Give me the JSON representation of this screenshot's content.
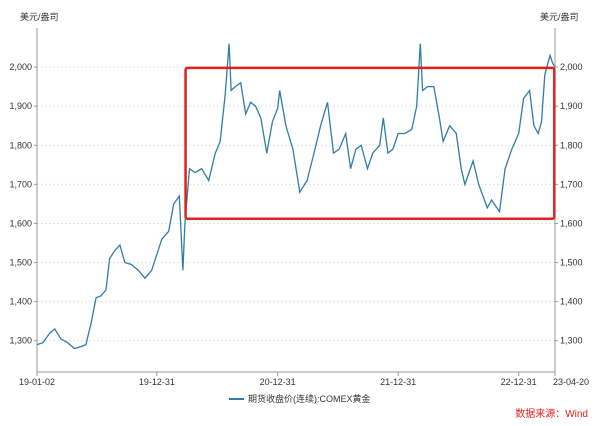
{
  "chart_data": {
    "type": "line",
    "title": "",
    "ylabel_left": "美元/盎司",
    "ylabel_right": "美元/盎司",
    "ylim": [
      1220,
      2100
    ],
    "yticks": [
      1300,
      1400,
      1500,
      1600,
      1700,
      1800,
      1900,
      2000
    ],
    "ytick_labels": [
      "1,300",
      "1,400",
      "1,500",
      "1,600",
      "1,700",
      "1,800",
      "1,900",
      "2,000"
    ],
    "xlim": [
      "2019-01-02",
      "2023-04-20"
    ],
    "xticks": [
      "2019-01-02",
      "2019-12-31",
      "2020-12-31",
      "2021-12-31",
      "2022-12-31",
      "2023-04-20"
    ],
    "xtick_labels": [
      "19-01-02",
      "19-12-31",
      "20-12-31",
      "21-12-31",
      "22-12-31",
      "23-04-20"
    ],
    "grid": true,
    "legend": "bottom-center",
    "series": [
      {
        "name": "期货收盘价(连续):COMEX黄金",
        "color": "#2f7ca8",
        "x": [
          "2019-01-02",
          "2019-01-20",
          "2019-02-10",
          "2019-02-25",
          "2019-03-15",
          "2019-04-05",
          "2019-04-25",
          "2019-05-15",
          "2019-05-30",
          "2019-06-15",
          "2019-06-30",
          "2019-07-15",
          "2019-07-30",
          "2019-08-10",
          "2019-08-25",
          "2019-09-10",
          "2019-09-25",
          "2019-10-15",
          "2019-11-05",
          "2019-11-25",
          "2019-12-15",
          "2019-12-31",
          "2020-01-15",
          "2020-02-05",
          "2020-02-20",
          "2020-03-08",
          "2020-03-19",
          "2020-03-25",
          "2020-04-08",
          "2020-04-25",
          "2020-05-15",
          "2020-06-05",
          "2020-06-25",
          "2020-07-10",
          "2020-07-25",
          "2020-08-06",
          "2020-08-12",
          "2020-08-25",
          "2020-09-10",
          "2020-09-25",
          "2020-10-10",
          "2020-10-25",
          "2020-11-10",
          "2020-11-28",
          "2020-12-15",
          "2020-12-31",
          "2021-01-06",
          "2021-01-25",
          "2021-02-15",
          "2021-03-08",
          "2021-03-30",
          "2021-04-20",
          "2021-05-10",
          "2021-05-31",
          "2021-06-18",
          "2021-07-05",
          "2021-07-25",
          "2021-08-09",
          "2021-08-25",
          "2021-09-10",
          "2021-09-29",
          "2021-10-15",
          "2021-11-05",
          "2021-11-16",
          "2021-11-30",
          "2021-12-15",
          "2021-12-31",
          "2022-01-20",
          "2022-02-10",
          "2022-02-25",
          "2022-03-08",
          "2022-03-15",
          "2022-03-30",
          "2022-04-18",
          "2022-05-05",
          "2022-05-16",
          "2022-06-05",
          "2022-06-25",
          "2022-07-10",
          "2022-07-21",
          "2022-08-15",
          "2022-09-01",
          "2022-09-27",
          "2022-10-10",
          "2022-11-03",
          "2022-11-20",
          "2022-12-10",
          "2022-12-31",
          "2023-01-15",
          "2023-02-02",
          "2023-02-15",
          "2023-02-28",
          "2023-03-10",
          "2023-03-20",
          "2023-04-05",
          "2023-04-13",
          "2023-04-20"
        ],
        "y": [
          1290,
          1295,
          1320,
          1330,
          1305,
          1295,
          1280,
          1285,
          1290,
          1345,
          1410,
          1415,
          1430,
          1510,
          1530,
          1545,
          1500,
          1495,
          1480,
          1460,
          1480,
          1520,
          1560,
          1580,
          1650,
          1670,
          1480,
          1600,
          1740,
          1730,
          1740,
          1710,
          1780,
          1810,
          1930,
          2060,
          1940,
          1950,
          1960,
          1880,
          1910,
          1900,
          1870,
          1780,
          1860,
          1895,
          1940,
          1850,
          1790,
          1680,
          1710,
          1780,
          1850,
          1910,
          1780,
          1790,
          1830,
          1740,
          1790,
          1800,
          1740,
          1780,
          1800,
          1870,
          1780,
          1790,
          1830,
          1830,
          1840,
          1900,
          2060,
          1940,
          1950,
          1950,
          1870,
          1810,
          1850,
          1830,
          1740,
          1700,
          1760,
          1700,
          1640,
          1660,
          1630,
          1740,
          1790,
          1830,
          1920,
          1940,
          1850,
          1830,
          1860,
          1980,
          2030,
          2010,
          2000
        ]
      }
    ],
    "annotations": [
      {
        "type": "rect",
        "color": "#e0201b",
        "x0": "2020-03-27",
        "x1": "2023-04-18",
        "y0": 1612,
        "y1": 1998
      }
    ],
    "source_note": "数据来源：Wind"
  }
}
